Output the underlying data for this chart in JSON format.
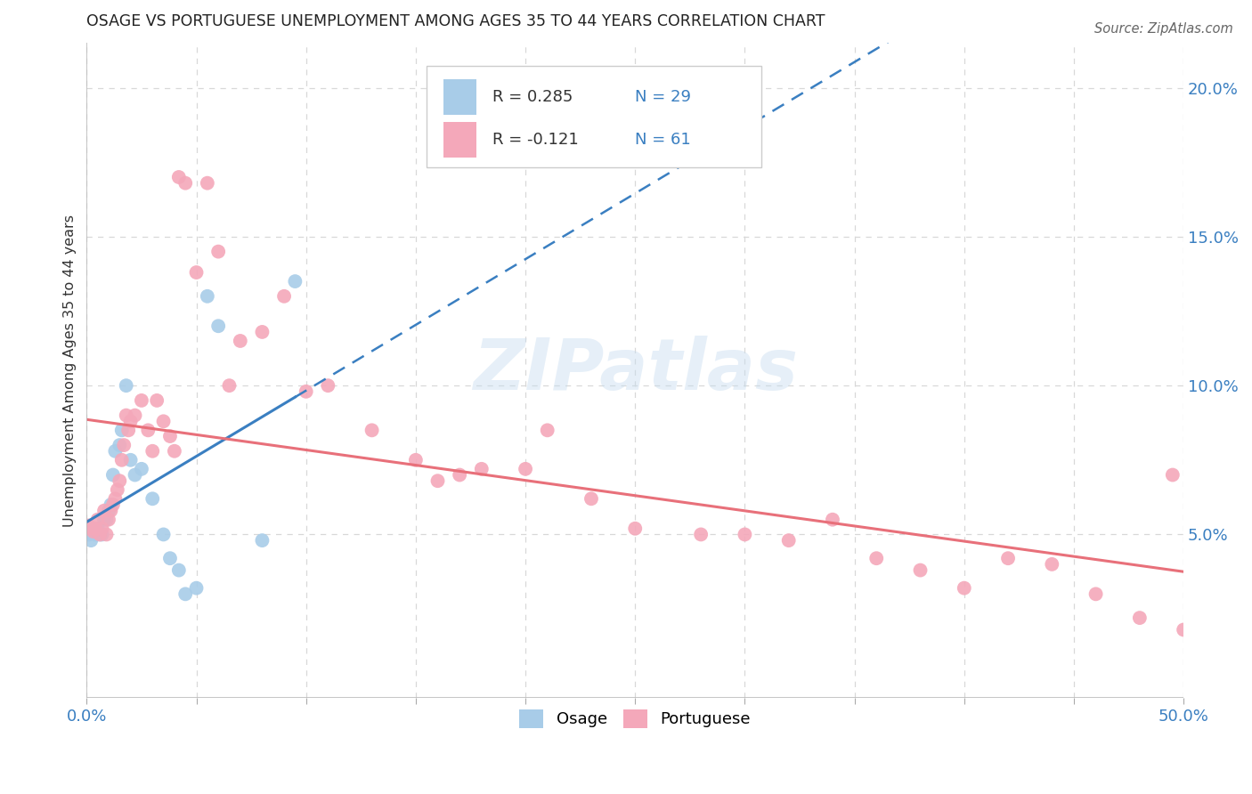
{
  "title": "OSAGE VS PORTUGUESE UNEMPLOYMENT AMONG AGES 35 TO 44 YEARS CORRELATION CHART",
  "source": "Source: ZipAtlas.com",
  "ylabel": "Unemployment Among Ages 35 to 44 years",
  "xlim": [
    0,
    0.5
  ],
  "ylim": [
    -0.005,
    0.215
  ],
  "xticks": [
    0.0,
    0.05,
    0.1,
    0.15,
    0.2,
    0.25,
    0.3,
    0.35,
    0.4,
    0.45,
    0.5
  ],
  "yticks_right": [
    0.05,
    0.1,
    0.15,
    0.2
  ],
  "ytick_right_labels": [
    "5.0%",
    "10.0%",
    "15.0%",
    "20.0%"
  ],
  "osage_color": "#a8cce8",
  "portuguese_color": "#f4a8ba",
  "osage_line_color": "#3a7fc1",
  "portuguese_line_color": "#e8707a",
  "legend_R_osage": "0.285",
  "legend_N_osage": "29",
  "legend_R_portuguese": "-0.121",
  "legend_N_portuguese": "61",
  "watermark_text": "ZIPatlas",
  "background_color": "#ffffff",
  "grid_color": "#d8d8d8",
  "osage_x": [
    0.001,
    0.002,
    0.003,
    0.004,
    0.005,
    0.006,
    0.007,
    0.008,
    0.009,
    0.01,
    0.011,
    0.012,
    0.013,
    0.015,
    0.016,
    0.018,
    0.02,
    0.022,
    0.025,
    0.03,
    0.035,
    0.038,
    0.042,
    0.045,
    0.05,
    0.055,
    0.06,
    0.08,
    0.095
  ],
  "osage_y": [
    0.05,
    0.048,
    0.052,
    0.05,
    0.052,
    0.05,
    0.05,
    0.055,
    0.055,
    0.058,
    0.06,
    0.07,
    0.078,
    0.08,
    0.085,
    0.1,
    0.075,
    0.07,
    0.072,
    0.062,
    0.05,
    0.042,
    0.038,
    0.03,
    0.032,
    0.13,
    0.12,
    0.048,
    0.135
  ],
  "portuguese_x": [
    0.001,
    0.002,
    0.003,
    0.004,
    0.005,
    0.006,
    0.007,
    0.008,
    0.009,
    0.01,
    0.011,
    0.012,
    0.013,
    0.014,
    0.015,
    0.016,
    0.017,
    0.018,
    0.019,
    0.02,
    0.022,
    0.025,
    0.028,
    0.03,
    0.032,
    0.035,
    0.038,
    0.04,
    0.042,
    0.045,
    0.05,
    0.055,
    0.06,
    0.065,
    0.07,
    0.08,
    0.09,
    0.1,
    0.11,
    0.13,
    0.15,
    0.16,
    0.17,
    0.18,
    0.2,
    0.21,
    0.23,
    0.25,
    0.28,
    0.3,
    0.32,
    0.34,
    0.36,
    0.38,
    0.4,
    0.42,
    0.44,
    0.46,
    0.48,
    0.5,
    0.495
  ],
  "portuguese_y": [
    0.053,
    0.052,
    0.051,
    0.052,
    0.055,
    0.05,
    0.052,
    0.058,
    0.05,
    0.055,
    0.058,
    0.06,
    0.062,
    0.065,
    0.068,
    0.075,
    0.08,
    0.09,
    0.085,
    0.088,
    0.09,
    0.095,
    0.085,
    0.078,
    0.095,
    0.088,
    0.083,
    0.078,
    0.17,
    0.168,
    0.138,
    0.168,
    0.145,
    0.1,
    0.115,
    0.118,
    0.13,
    0.098,
    0.1,
    0.085,
    0.075,
    0.068,
    0.07,
    0.072,
    0.072,
    0.085,
    0.062,
    0.052,
    0.05,
    0.05,
    0.048,
    0.055,
    0.042,
    0.038,
    0.032,
    0.042,
    0.04,
    0.03,
    0.022,
    0.018,
    0.07
  ]
}
